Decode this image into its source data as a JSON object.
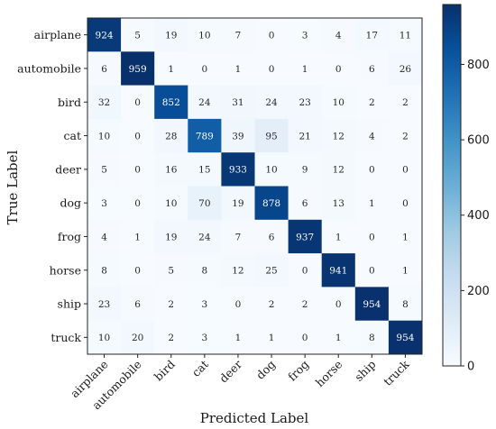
{
  "chart_data": {
    "type": "heatmap",
    "xlabel": "Predicted Label",
    "ylabel": "True Label",
    "x_categories": [
      "airplane",
      "automobile",
      "bird",
      "cat",
      "deer",
      "dog",
      "frog",
      "horse",
      "ship",
      "truck"
    ],
    "y_categories": [
      "airplane",
      "automobile",
      "bird",
      "cat",
      "deer",
      "dog",
      "frog",
      "horse",
      "ship",
      "truck"
    ],
    "values": [
      [
        924,
        5,
        19,
        10,
        7,
        0,
        3,
        4,
        17,
        11
      ],
      [
        6,
        959,
        1,
        0,
        1,
        0,
        1,
        0,
        6,
        26
      ],
      [
        32,
        0,
        852,
        24,
        31,
        24,
        23,
        10,
        2,
        2
      ],
      [
        10,
        0,
        28,
        789,
        39,
        95,
        21,
        12,
        4,
        2
      ],
      [
        5,
        0,
        16,
        15,
        933,
        10,
        9,
        12,
        0,
        0
      ],
      [
        3,
        0,
        10,
        70,
        19,
        878,
        6,
        13,
        1,
        0
      ],
      [
        4,
        1,
        19,
        24,
        7,
        6,
        937,
        1,
        0,
        1
      ],
      [
        8,
        0,
        5,
        8,
        12,
        25,
        0,
        941,
        0,
        1
      ],
      [
        23,
        6,
        2,
        3,
        0,
        2,
        2,
        0,
        954,
        8
      ],
      [
        10,
        20,
        2,
        3,
        1,
        1,
        0,
        1,
        8,
        954
      ]
    ],
    "colorbar": {
      "range": [
        0,
        959
      ],
      "ticks": [
        0,
        200,
        400,
        600,
        800
      ],
      "colormap": "Blues",
      "color_low": "#f7fbff",
      "color_high": "#08306b"
    },
    "grid": false
  }
}
